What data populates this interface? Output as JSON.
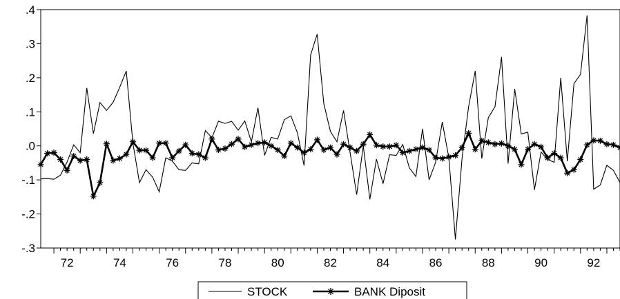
{
  "chart_data": {
    "type": "line",
    "title": "",
    "xlabel": "",
    "ylabel": "",
    "xlim": [
      1971.5,
      1993.5
    ],
    "ylim": [
      -0.3,
      0.4
    ],
    "x_ticks": [
      72,
      74,
      76,
      78,
      80,
      82,
      84,
      86,
      88,
      90,
      92
    ],
    "y_ticks": [
      {
        "value": 0.4,
        "label": ".4"
      },
      {
        "value": 0.3,
        "label": ".3"
      },
      {
        "value": 0.2,
        "label": ".2"
      },
      {
        "value": 0.1,
        "label": ".1"
      },
      {
        "value": 0.0,
        "label": ".0"
      },
      {
        "value": -0.1,
        "label": "-.1"
      },
      {
        "value": -0.2,
        "label": "-.2"
      },
      {
        "value": -0.3,
        "label": "-.3"
      }
    ],
    "grid": false,
    "legend_position": "bottom-center",
    "x_start": 1971.5,
    "x_step": 0.25,
    "series": [
      {
        "name": "STOCK",
        "color": "#000000",
        "marker": "none",
        "values": [
          -0.097,
          -0.096,
          -0.098,
          -0.086,
          -0.048,
          0.003,
          -0.02,
          0.17,
          0.036,
          0.127,
          0.104,
          0.128,
          0.172,
          0.22,
          0.008,
          -0.108,
          -0.07,
          -0.092,
          -0.135,
          -0.035,
          -0.045,
          -0.07,
          -0.072,
          -0.05,
          -0.053,
          0.045,
          0.024,
          0.072,
          0.066,
          0.072,
          0.046,
          0.073,
          0.012,
          0.112,
          -0.028,
          0.025,
          0.02,
          0.077,
          0.088,
          0.038,
          -0.058,
          0.267,
          0.328,
          0.124,
          0.043,
          0.012,
          0.104,
          -0.02,
          -0.143,
          0.0,
          -0.157,
          -0.039,
          -0.111,
          -0.026,
          -0.028,
          0.004,
          -0.065,
          -0.09,
          0.05,
          -0.1,
          -0.048,
          0.07,
          -0.035,
          -0.275,
          -0.037,
          0.115,
          0.22,
          -0.037,
          0.083,
          0.115,
          0.261,
          -0.052,
          0.167,
          0.035,
          0.04,
          -0.129,
          -0.018,
          -0.04,
          -0.048,
          0.2,
          -0.045,
          0.183,
          0.21,
          0.383,
          -0.127,
          -0.115,
          -0.057,
          -0.072,
          -0.108
        ]
      },
      {
        "name": "BANK Diposit",
        "color": "#000000",
        "marker": "asterisk",
        "values": [
          -0.055,
          -0.022,
          -0.02,
          -0.04,
          -0.072,
          -0.03,
          -0.043,
          -0.04,
          -0.148,
          -0.108,
          0.006,
          -0.043,
          -0.037,
          -0.025,
          0.012,
          -0.013,
          -0.013,
          -0.035,
          0.008,
          0.008,
          -0.035,
          -0.015,
          0.003,
          -0.022,
          -0.025,
          -0.035,
          0.02,
          -0.012,
          -0.008,
          0.005,
          0.02,
          -0.003,
          0.003,
          0.008,
          0.01,
          0.0,
          -0.012,
          -0.03,
          0.008,
          -0.005,
          -0.02,
          -0.01,
          0.018,
          -0.012,
          -0.005,
          -0.025,
          0.005,
          -0.005,
          -0.015,
          0.005,
          0.033,
          0.002,
          -0.002,
          -0.002,
          0.002,
          -0.02,
          -0.015,
          -0.01,
          -0.005,
          -0.012,
          -0.035,
          -0.037,
          -0.033,
          -0.028,
          -0.005,
          0.037,
          -0.01,
          0.015,
          0.01,
          0.005,
          0.007,
          0.0,
          -0.01,
          -0.055,
          -0.01,
          0.005,
          -0.003,
          -0.035,
          -0.022,
          -0.035,
          -0.08,
          -0.07,
          -0.04,
          0.003,
          0.016,
          0.015,
          0.005,
          0.003,
          -0.005
        ]
      }
    ]
  }
}
